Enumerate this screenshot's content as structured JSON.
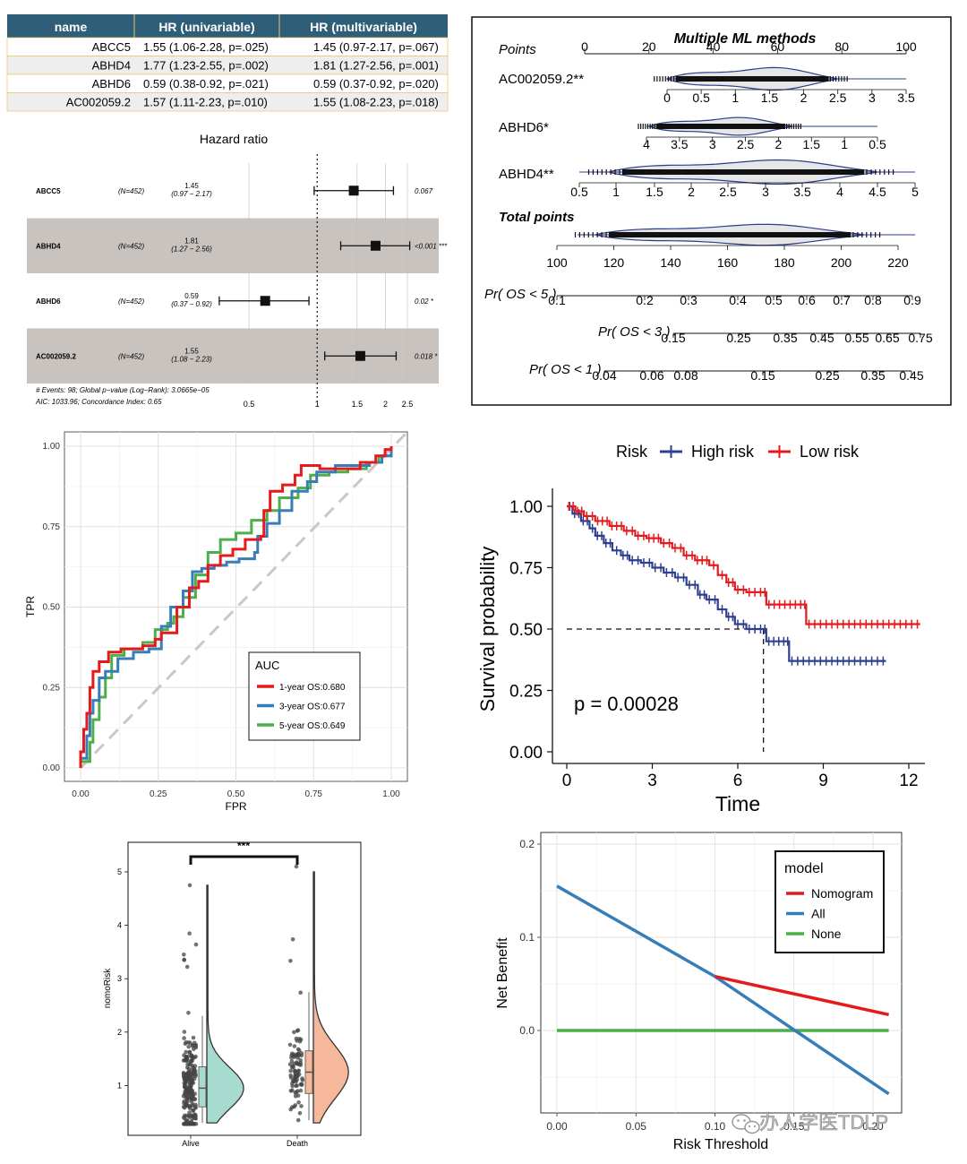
{
  "colors": {
    "red": "#E41A1C",
    "blue": "#377EB8",
    "green": "#4DAF4A",
    "navy": "#2E3F8F",
    "band": "#C9C3BF",
    "table_head": "#2F5F78"
  },
  "chart_data": [
    {
      "type": "table",
      "id": "cox_table",
      "columns": [
        "name",
        "HR (univariable)",
        "HR (multivariable)"
      ],
      "rows": [
        [
          "ABCC5",
          "1.55 (1.06-2.28, p=.025)",
          "1.45 (0.97-2.17, p=.067)"
        ],
        [
          "ABHD4",
          "1.77 (1.23-2.55, p=.002)",
          "1.81 (1.27-2.56, p=.001)"
        ],
        [
          "ABHD6",
          "0.59 (0.38-0.92, p=.021)",
          "0.59 (0.37-0.92, p=.020)"
        ],
        [
          "AC002059.2",
          "1.57 (1.11-2.23, p=.010)",
          "1.55 (1.08-2.23, p=.018)"
        ]
      ]
    },
    {
      "type": "forest",
      "id": "forest",
      "title": "Hazard ratio",
      "xticks": [
        "0.5",
        "1",
        "1.5",
        "2",
        "2.5"
      ],
      "xtick_values": [
        0.5,
        1,
        1.5,
        2,
        2.5
      ],
      "rows": [
        {
          "name": "ABCC5",
          "n": "(N=452)",
          "hr": 1.45,
          "lo": 0.97,
          "hi": 2.17,
          "hr_label": "1.45",
          "ci_label": "(0.97 − 2.17)",
          "p": "0.067",
          "shaded": false
        },
        {
          "name": "ABHD4",
          "n": "(N=452)",
          "hr": 1.81,
          "lo": 1.27,
          "hi": 2.56,
          "hr_label": "1.81",
          "ci_label": "(1.27 − 2.56)",
          "p": "<0.001 ***",
          "shaded": true
        },
        {
          "name": "ABHD6",
          "n": "(N=452)",
          "hr": 0.59,
          "lo": 0.37,
          "hi": 0.92,
          "hr_label": "0.59",
          "ci_label": "(0.37 − 0.92)",
          "p": "0.02 *",
          "shaded": false
        },
        {
          "name": "AC002059.2",
          "n": "(N=452)",
          "hr": 1.55,
          "lo": 1.08,
          "hi": 2.23,
          "hr_label": "1.55",
          "ci_label": "(1.08 − 2.23)",
          "p": "0.018 *",
          "shaded": true
        }
      ],
      "footer1": "# Events: 98; Global p−value (Log−Rank): 3.0665e−05",
      "footer2": "AIC: 1033.96; Concordance Index: 0.65"
    },
    {
      "type": "nomogram",
      "id": "nomogram",
      "title": "Multiple ML methods",
      "rows": [
        {
          "label": "Points",
          "ticks": [
            "0",
            "20",
            "40",
            "60",
            "80",
            "100"
          ]
        },
        {
          "label": "AC002059.2**",
          "ticks": [
            "0",
            "0.5",
            "1",
            "1.5",
            "2",
            "2.5",
            "3",
            "3.5"
          ]
        },
        {
          "label": "ABHD6*",
          "ticks": [
            "4",
            "3.5",
            "3",
            "2.5",
            "2",
            "1.5",
            "1",
            "0.5"
          ]
        },
        {
          "label": "ABHD4**",
          "ticks": [
            "0.5",
            "1",
            "1.5",
            "2",
            "2.5",
            "3",
            "3.5",
            "4",
            "4.5",
            "5"
          ]
        },
        {
          "label": "Total points",
          "ticks": [
            "100",
            "120",
            "140",
            "160",
            "180",
            "200",
            "220"
          ]
        },
        {
          "label": "Pr( OS < 5 )",
          "ticks": [
            "0.1",
            "0.2",
            "0.3",
            "0.4",
            "0.5",
            "0.6",
            "0.7",
            "0.8",
            "0.9"
          ]
        },
        {
          "label": "Pr( OS < 3 )",
          "ticks": [
            "0.15",
            "0.25",
            "0.35",
            "0.45",
            "0.55",
            "0.65",
            "0.75"
          ]
        },
        {
          "label": "Pr( OS < 1 )",
          "ticks": [
            "0.04",
            "0.06",
            "0.08",
            "0.15",
            "0.25",
            "0.35",
            "0.45"
          ]
        }
      ]
    },
    {
      "type": "line",
      "id": "roc",
      "xlabel": "FPR",
      "ylabel": "TPR",
      "xlim": [
        0,
        1
      ],
      "ylim": [
        0,
        1
      ],
      "xticks": [
        "0.00",
        "0.25",
        "0.50",
        "0.75",
        "1.00"
      ],
      "yticks": [
        "0.00",
        "0.25",
        "0.50",
        "0.75",
        "1.00"
      ],
      "legend_title": "AUC",
      "series": [
        {
          "name": "1-year OS:0.680",
          "color": "#E41A1C",
          "points": [
            [
              0,
              0
            ],
            [
              0,
              0.05
            ],
            [
              0.01,
              0.12
            ],
            [
              0.02,
              0.17
            ],
            [
              0.03,
              0.25
            ],
            [
              0.04,
              0.3
            ],
            [
              0.06,
              0.33
            ],
            [
              0.09,
              0.36
            ],
            [
              0.13,
              0.37
            ],
            [
              0.2,
              0.38
            ],
            [
              0.24,
              0.4
            ],
            [
              0.26,
              0.42
            ],
            [
              0.3,
              0.42
            ],
            [
              0.31,
              0.5
            ],
            [
              0.34,
              0.5
            ],
            [
              0.35,
              0.56
            ],
            [
              0.38,
              0.58
            ],
            [
              0.41,
              0.63
            ],
            [
              0.45,
              0.66
            ],
            [
              0.49,
              0.68
            ],
            [
              0.53,
              0.71
            ],
            [
              0.58,
              0.72
            ],
            [
              0.59,
              0.8
            ],
            [
              0.61,
              0.86
            ],
            [
              0.65,
              0.88
            ],
            [
              0.69,
              0.91
            ],
            [
              0.71,
              0.94
            ],
            [
              0.75,
              0.94
            ],
            [
              0.77,
              0.93
            ],
            [
              0.83,
              0.93
            ],
            [
              0.9,
              0.95
            ],
            [
              0.95,
              0.97
            ],
            [
              0.98,
              0.99
            ],
            [
              1,
              1
            ]
          ]
        },
        {
          "name": "3-year OS:0.677",
          "color": "#377EB8",
          "points": [
            [
              0,
              0
            ],
            [
              0,
              0.03
            ],
            [
              0.02,
              0.1
            ],
            [
              0.03,
              0.17
            ],
            [
              0.04,
              0.21
            ],
            [
              0.06,
              0.28
            ],
            [
              0.08,
              0.3
            ],
            [
              0.12,
              0.34
            ],
            [
              0.17,
              0.36
            ],
            [
              0.22,
              0.37
            ],
            [
              0.26,
              0.44
            ],
            [
              0.29,
              0.5
            ],
            [
              0.33,
              0.55
            ],
            [
              0.36,
              0.61
            ],
            [
              0.39,
              0.62
            ],
            [
              0.43,
              0.63
            ],
            [
              0.47,
              0.64
            ],
            [
              0.51,
              0.65
            ],
            [
              0.56,
              0.67
            ],
            [
              0.57,
              0.72
            ],
            [
              0.6,
              0.76
            ],
            [
              0.64,
              0.8
            ],
            [
              0.68,
              0.86
            ],
            [
              0.73,
              0.89
            ],
            [
              0.76,
              0.92
            ],
            [
              0.82,
              0.94
            ],
            [
              0.88,
              0.94
            ],
            [
              0.93,
              0.95
            ],
            [
              0.97,
              0.97
            ],
            [
              1,
              1
            ]
          ]
        },
        {
          "name": "5-year OS:0.649",
          "color": "#4DAF4A",
          "points": [
            [
              0,
              0
            ],
            [
              0,
              0.02
            ],
            [
              0.03,
              0.08
            ],
            [
              0.04,
              0.15
            ],
            [
              0.06,
              0.22
            ],
            [
              0.08,
              0.28
            ],
            [
              0.1,
              0.35
            ],
            [
              0.14,
              0.37
            ],
            [
              0.2,
              0.39
            ],
            [
              0.24,
              0.43
            ],
            [
              0.28,
              0.45
            ],
            [
              0.3,
              0.47
            ],
            [
              0.33,
              0.53
            ],
            [
              0.37,
              0.6
            ],
            [
              0.41,
              0.67
            ],
            [
              0.45,
              0.71
            ],
            [
              0.5,
              0.73
            ],
            [
              0.55,
              0.77
            ],
            [
              0.6,
              0.8
            ],
            [
              0.64,
              0.84
            ],
            [
              0.7,
              0.87
            ],
            [
              0.74,
              0.91
            ],
            [
              0.8,
              0.92
            ],
            [
              0.86,
              0.93
            ],
            [
              0.92,
              0.95
            ],
            [
              0.96,
              0.97
            ],
            [
              1,
              1
            ]
          ]
        }
      ]
    },
    {
      "type": "line",
      "id": "km",
      "legend_title": "Risk",
      "xlabel": "Time",
      "ylabel": "Survival probability",
      "xlim": [
        0,
        12.5
      ],
      "ylim": [
        0,
        1
      ],
      "xticks": [
        "0",
        "3",
        "6",
        "9",
        "12"
      ],
      "yticks": [
        "0.00",
        "0.25",
        "0.50",
        "0.75",
        "1.00"
      ],
      "pvalue": "p = 0.00028",
      "median_high": 6.9,
      "series": [
        {
          "name": "High risk",
          "color": "#2E3F8F",
          "points": [
            [
              0,
              1
            ],
            [
              0.2,
              0.97
            ],
            [
              0.5,
              0.94
            ],
            [
              0.8,
              0.91
            ],
            [
              1.0,
              0.88
            ],
            [
              1.3,
              0.85
            ],
            [
              1.6,
              0.82
            ],
            [
              1.9,
              0.8
            ],
            [
              2.2,
              0.78
            ],
            [
              2.6,
              0.77
            ],
            [
              3.0,
              0.75
            ],
            [
              3.4,
              0.73
            ],
            [
              3.8,
              0.71
            ],
            [
              4.2,
              0.68
            ],
            [
              4.6,
              0.64
            ],
            [
              4.9,
              0.62
            ],
            [
              5.3,
              0.58
            ],
            [
              5.6,
              0.55
            ],
            [
              5.9,
              0.52
            ],
            [
              6.3,
              0.5
            ],
            [
              6.9,
              0.5
            ],
            [
              7.0,
              0.45
            ],
            [
              7.7,
              0.45
            ],
            [
              7.8,
              0.37
            ],
            [
              11.2,
              0.37
            ]
          ]
        },
        {
          "name": "Low risk",
          "color": "#E41A1C",
          "points": [
            [
              0,
              1
            ],
            [
              0.3,
              0.98
            ],
            [
              0.6,
              0.96
            ],
            [
              1.0,
              0.94
            ],
            [
              1.5,
              0.92
            ],
            [
              2.0,
              0.9
            ],
            [
              2.4,
              0.88
            ],
            [
              2.8,
              0.87
            ],
            [
              3.3,
              0.85
            ],
            [
              3.7,
              0.83
            ],
            [
              4.1,
              0.8
            ],
            [
              4.5,
              0.78
            ],
            [
              5.0,
              0.76
            ],
            [
              5.3,
              0.72
            ],
            [
              5.6,
              0.69
            ],
            [
              5.9,
              0.66
            ],
            [
              6.3,
              0.65
            ],
            [
              6.9,
              0.65
            ],
            [
              7.0,
              0.6
            ],
            [
              8.3,
              0.6
            ],
            [
              8.4,
              0.52
            ],
            [
              12.4,
              0.52
            ]
          ]
        }
      ]
    },
    {
      "type": "violin",
      "id": "raincloud",
      "ylabel": "nomoRisk",
      "categories": [
        "Alive",
        "Death"
      ],
      "yticks": [
        "1",
        "2",
        "3",
        "4",
        "5"
      ],
      "significance": "***",
      "groups": [
        {
          "name": "Alive",
          "color": "#A8DBD0",
          "median": 0.95,
          "q1": 0.6,
          "q3": 1.35,
          "min": 0.3,
          "max": 2.3,
          "max_point": 4.75
        },
        {
          "name": "Death",
          "color": "#F5B89A",
          "median": 1.25,
          "q1": 0.85,
          "q3": 1.65,
          "min": 0.35,
          "max": 2.75,
          "max_point": 5.1
        }
      ]
    },
    {
      "type": "line",
      "id": "dca",
      "xlabel": "Risk Threshold",
      "ylabel": "Net Benefit",
      "xlim": [
        -0.005,
        0.215
      ],
      "ylim": [
        -0.085,
        0.205
      ],
      "xticks": [
        "0.00",
        "0.05",
        "0.10",
        "0.15",
        "0.20"
      ],
      "yticks": [
        "0.0",
        "0.1",
        "0.2"
      ],
      "legend_title": "model",
      "series": [
        {
          "name": "Nomogram",
          "color": "#E41A1C",
          "points": [
            [
              0.1,
              0.058
            ],
            [
              0.21,
              0.017
            ]
          ]
        },
        {
          "name": "All",
          "color": "#377EB8",
          "points": [
            [
              0,
              0.155
            ],
            [
              0.1,
              0.058
            ],
            [
              0.21,
              -0.068
            ]
          ]
        },
        {
          "name": "None",
          "color": "#4DAF4A",
          "points": [
            [
              0,
              0
            ],
            [
              0.21,
              0
            ]
          ]
        }
      ]
    }
  ],
  "watermark": "办人学医TDLP"
}
